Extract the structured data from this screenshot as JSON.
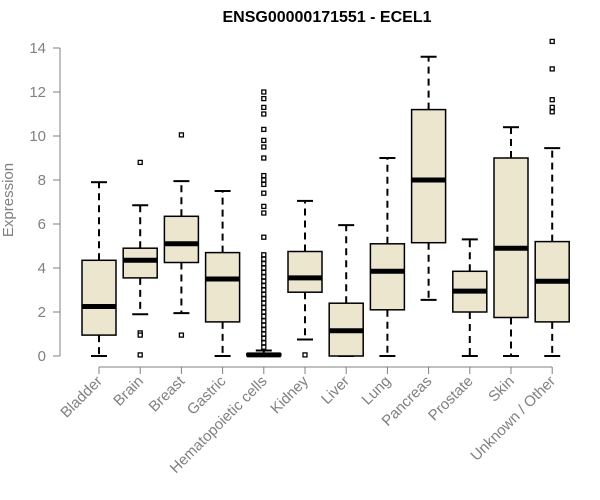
{
  "chart_data": {
    "type": "boxplot",
    "title": "ENSG00000171551 - ECEL1",
    "xlabel": "",
    "ylabel": "Expression",
    "ylim": [
      0,
      14
    ],
    "yticks": [
      0,
      2,
      4,
      6,
      8,
      10,
      12,
      14
    ],
    "box_color": "#ede6ce",
    "categories": [
      "Bladder",
      "Brain",
      "Breast",
      "Gastric",
      "Hematopoietic cells",
      "Kidney",
      "Liver",
      "Lung",
      "Pancreas",
      "Prostate",
      "Skin",
      "Unknown / Other"
    ],
    "boxes": [
      {
        "name": "Bladder",
        "min": 0,
        "q1": 0.95,
        "median": 2.25,
        "q3": 4.35,
        "max": 7.9,
        "outliers": []
      },
      {
        "name": "Brain",
        "min": 1.9,
        "q1": 3.55,
        "median": 4.35,
        "q3": 4.9,
        "max": 6.85,
        "outliers": [
          8.8,
          1.05,
          0.95,
          0.05
        ]
      },
      {
        "name": "Breast",
        "min": 1.95,
        "q1": 4.25,
        "median": 5.1,
        "q3": 6.35,
        "max": 7.95,
        "outliers": [
          10.05,
          0.95
        ]
      },
      {
        "name": "Gastric",
        "min": 0,
        "q1": 1.55,
        "median": 3.5,
        "q3": 4.7,
        "max": 7.5,
        "outliers": []
      },
      {
        "name": "Hematopoietic cells",
        "min": 0,
        "q1": 0.02,
        "median": 0.05,
        "q3": 0.1,
        "max": 0.25,
        "outliers": [
          12.0,
          11.7,
          11.3,
          11.0,
          10.3,
          9.8,
          9.5,
          9.0,
          8.2,
          8.0,
          7.8,
          7.4,
          6.8,
          6.5,
          5.4,
          4.6,
          4.4,
          4.2,
          4.0,
          3.8,
          3.6,
          3.4,
          3.2,
          3.0,
          2.8,
          2.6,
          2.4,
          2.2,
          2.0,
          1.8,
          1.6,
          1.4,
          1.2,
          1.0,
          0.8,
          0.6,
          0.4
        ]
      },
      {
        "name": "Kidney",
        "min": 0.75,
        "q1": 2.9,
        "median": 3.55,
        "q3": 4.75,
        "max": 7.05,
        "outliers": [
          0.05
        ]
      },
      {
        "name": "Liver",
        "min": 0,
        "q1": 0,
        "median": 1.15,
        "q3": 2.4,
        "max": 5.95,
        "outliers": []
      },
      {
        "name": "Lung",
        "min": 0,
        "q1": 2.1,
        "median": 3.85,
        "q3": 5.1,
        "max": 9.0,
        "outliers": []
      },
      {
        "name": "Pancreas",
        "min": 2.55,
        "q1": 5.15,
        "median": 8.0,
        "q3": 11.2,
        "max": 13.6,
        "outliers": []
      },
      {
        "name": "Prostate",
        "min": 0,
        "q1": 2.0,
        "median": 2.95,
        "q3": 3.85,
        "max": 5.3,
        "outliers": []
      },
      {
        "name": "Skin",
        "min": 0,
        "q1": 1.75,
        "median": 4.9,
        "q3": 9.0,
        "max": 10.4,
        "outliers": []
      },
      {
        "name": "Unknown / Other",
        "min": 0,
        "q1": 1.55,
        "median": 3.4,
        "q3": 5.2,
        "max": 9.45,
        "outliers": [
          14.3,
          13.05,
          11.65,
          11.3,
          11.1
        ]
      }
    ]
  }
}
